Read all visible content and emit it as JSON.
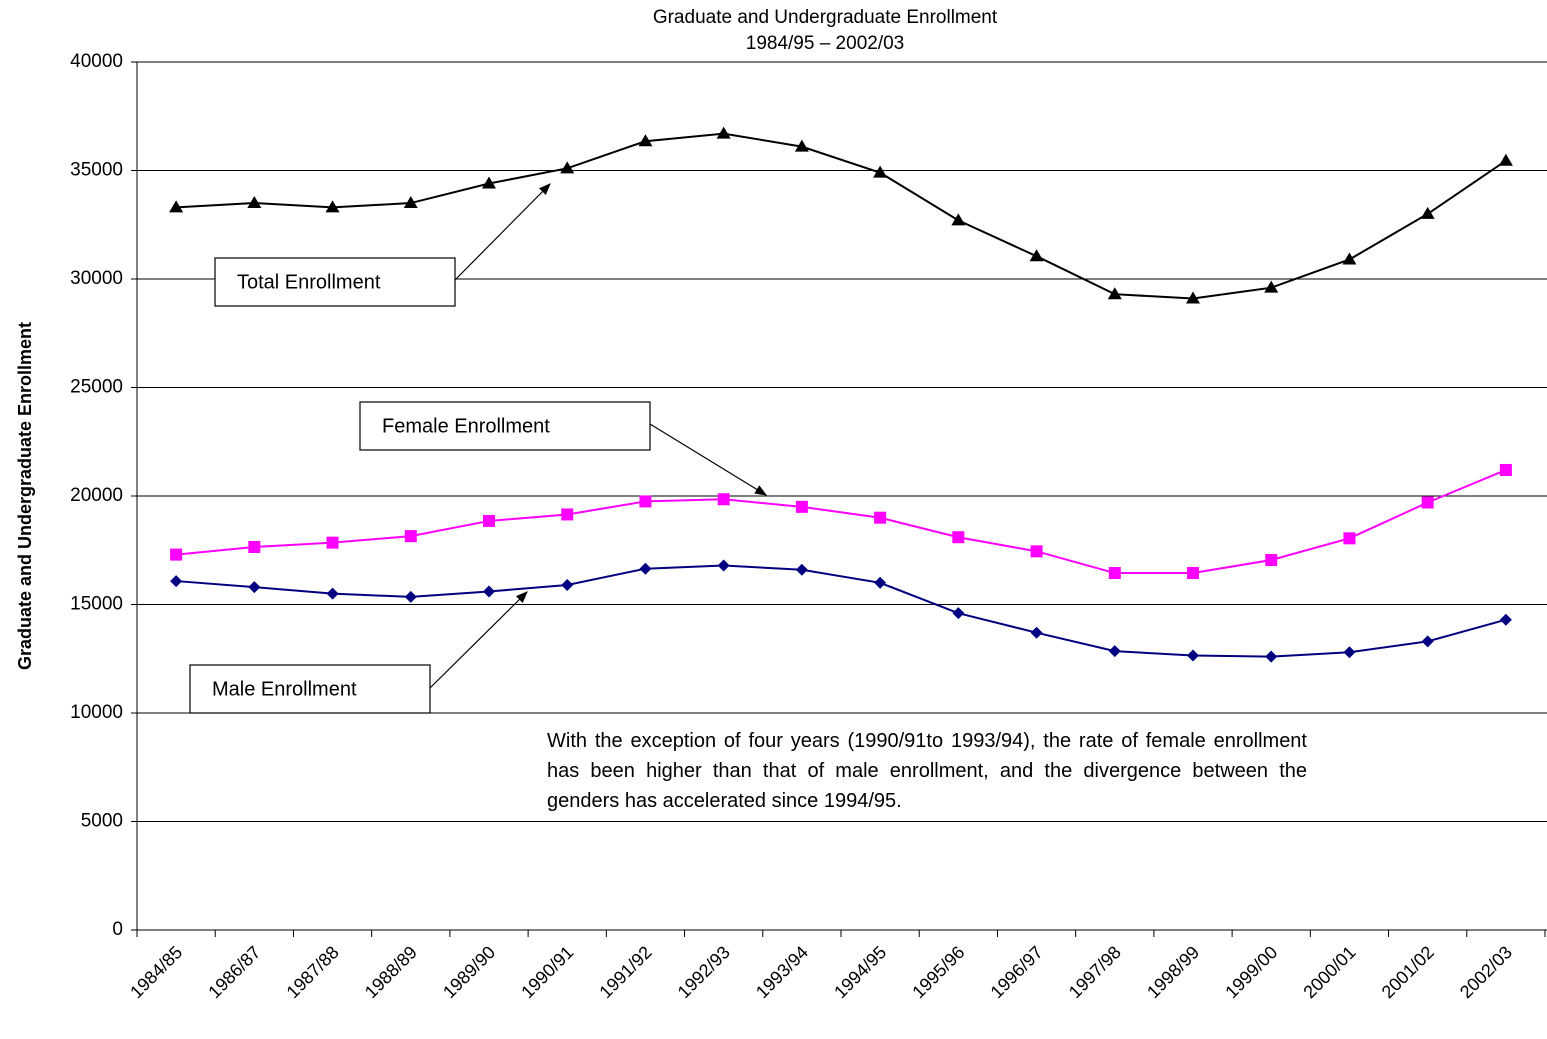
{
  "chart_data": {
    "type": "line",
    "title": "Graduate and Undergraduate Enrollment",
    "subtitle": "1984/95 – 2002/03",
    "y_label": "Graduate and Undergraduate Enrollment",
    "categories": [
      "1984/85",
      "1986/87",
      "1987/88",
      "1988/89",
      "1989/90",
      "1990/91",
      "1991/92",
      "1992/93",
      "1993/94",
      "1994/95",
      "1995/96",
      "1996/97",
      "1997/98",
      "1998/99",
      "1999/00",
      "2000/01",
      "2001/02",
      "2002/03"
    ],
    "series": [
      {
        "name": "Total Enrollment",
        "color": "#000000",
        "marker": "triangle",
        "values": [
          33300,
          33500,
          33300,
          33500,
          34400,
          35100,
          36350,
          36700,
          36100,
          34900,
          32700,
          31050,
          29300,
          29100,
          29600,
          30900,
          33000,
          35450
        ]
      },
      {
        "name": "Female Enrollment",
        "color": "#ff00ff",
        "marker": "square",
        "values": [
          17300,
          17650,
          17850,
          18150,
          18850,
          19150,
          19750,
          19850,
          19500,
          19000,
          18100,
          17450,
          16450,
          16450,
          17050,
          18050,
          19700,
          21200
        ]
      },
      {
        "name": "Male Enrollment",
        "color": "#000080",
        "marker": "diamond",
        "values": [
          16080,
          15800,
          15500,
          15350,
          15600,
          15900,
          16650,
          16800,
          16600,
          16000,
          14600,
          13700,
          12850,
          12650,
          12600,
          12800,
          13300,
          14300
        ]
      }
    ],
    "annotations": [
      "With the exception of four years (1990/91to 1993/94), the rate of female enrollment has been higher than that of male enrollment, and the divergence between the genders has accelerated since 1994/95."
    ],
    "ylim": [
      0,
      40000
    ],
    "yticks": [
      0,
      5000,
      10000,
      15000,
      20000,
      25000,
      30000,
      35000,
      40000
    ],
    "grid": true
  }
}
